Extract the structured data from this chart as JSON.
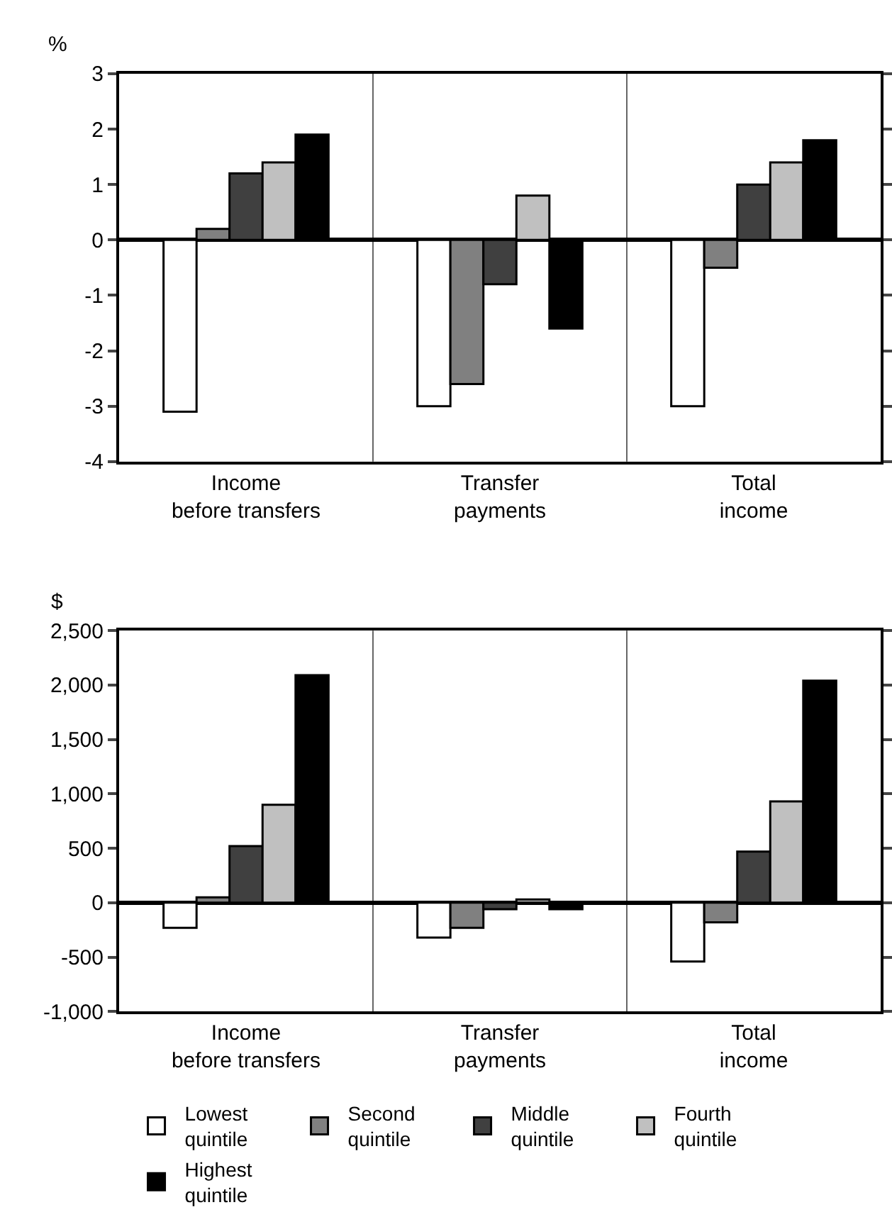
{
  "chart_data": [
    {
      "type": "bar",
      "ylabel": "%",
      "categories": [
        "Income\nbefore transfers",
        "Transfer\npayments",
        "Total\nincome"
      ],
      "ylim": [
        -4,
        3
      ],
      "yticks": [
        -4,
        -3,
        -2,
        -1,
        0,
        1,
        2,
        3
      ],
      "legend": false,
      "grid": false,
      "series": [
        {
          "color": "#ffffff",
          "values": [
            -3.1,
            -3.0,
            -3.0
          ]
        },
        {
          "color": "#808080",
          "values": [
            0.2,
            -2.6,
            -0.5
          ]
        },
        {
          "color": "#404040",
          "values": [
            1.2,
            -0.8,
            1.0
          ]
        },
        {
          "color": "#c0c0c0",
          "values": [
            1.4,
            0.8,
            1.4
          ]
        },
        {
          "color": "#000000",
          "values": [
            1.9,
            -1.6,
            1.8
          ]
        }
      ]
    },
    {
      "type": "bar",
      "ylabel": "$",
      "categories": [
        "Income\nbefore transfers",
        "Transfer\npayments",
        "Total\nincome"
      ],
      "ylim": [
        -1000,
        2500
      ],
      "yticks": [
        {
          "value": -1000,
          "label": "-1,000"
        },
        -500,
        0,
        500,
        {
          "value": 1000,
          "label": "1,000"
        },
        {
          "value": 1500,
          "label": "1,500"
        },
        {
          "value": 2000,
          "label": "2,000"
        },
        {
          "value": 2500,
          "label": "2,500"
        }
      ],
      "legend": "bottom",
      "grid": false,
      "series": [
        {
          "name": "Lowest\nquintile",
          "color": "#ffffff",
          "values": [
            -230,
            -320,
            -540
          ]
        },
        {
          "name": "Second\nquintile",
          "color": "#808080",
          "values": [
            50,
            -230,
            -180
          ]
        },
        {
          "name": "Middle\nquintile",
          "color": "#404040",
          "values": [
            520,
            -60,
            470
          ]
        },
        {
          "name": "Fourth\nquintile",
          "color": "#c0c0c0",
          "values": [
            900,
            30,
            930
          ]
        },
        {
          "name": "Highest\nquintile",
          "color": "#000000",
          "values": [
            2090,
            -60,
            2040
          ]
        }
      ]
    }
  ]
}
